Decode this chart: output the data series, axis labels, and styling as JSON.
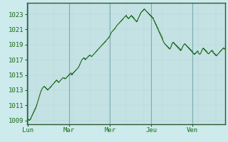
{
  "background_color": "#cdeaec",
  "plot_bg_color": "#cdeaec",
  "grid_color_light": "#b8d4d8",
  "grid_color_dark": "#7aacb2",
  "line_color": "#1a6b1a",
  "ylim": [
    1008.5,
    1024.5
  ],
  "yticks": [
    1009,
    1011,
    1013,
    1015,
    1017,
    1019,
    1021,
    1023
  ],
  "day_labels": [
    "Lun",
    "Mar",
    "Mer",
    "Jeu",
    "Ven"
  ],
  "day_positions": [
    0,
    60,
    120,
    180,
    240
  ],
  "total_points": 300,
  "pressure_values": [
    1009.2,
    1009.1,
    1009.0,
    1009.1,
    1009.2,
    1009.4,
    1009.6,
    1009.8,
    1010.0,
    1010.2,
    1010.4,
    1010.6,
    1010.8,
    1011.0,
    1011.3,
    1011.6,
    1011.9,
    1012.2,
    1012.5,
    1012.8,
    1013.0,
    1013.2,
    1013.3,
    1013.4,
    1013.5,
    1013.4,
    1013.3,
    1013.2,
    1013.1,
    1013.0,
    1013.1,
    1013.2,
    1013.3,
    1013.4,
    1013.5,
    1013.6,
    1013.7,
    1013.8,
    1013.9,
    1014.0,
    1014.1,
    1014.2,
    1014.3,
    1014.2,
    1014.1,
    1014.0,
    1014.1,
    1014.2,
    1014.3,
    1014.4,
    1014.5,
    1014.6,
    1014.6,
    1014.6,
    1014.5,
    1014.5,
    1014.6,
    1014.7,
    1014.8,
    1014.9,
    1015.0,
    1015.1,
    1015.2,
    1015.1,
    1015.0,
    1015.1,
    1015.2,
    1015.3,
    1015.4,
    1015.5,
    1015.6,
    1015.7,
    1015.8,
    1015.9,
    1016.0,
    1016.2,
    1016.4,
    1016.6,
    1016.8,
    1017.0,
    1017.1,
    1017.2,
    1017.2,
    1017.1,
    1017.0,
    1017.1,
    1017.2,
    1017.3,
    1017.4,
    1017.5,
    1017.6,
    1017.6,
    1017.5,
    1017.4,
    1017.5,
    1017.6,
    1017.7,
    1017.8,
    1017.9,
    1018.0,
    1018.1,
    1018.2,
    1018.3,
    1018.4,
    1018.5,
    1018.6,
    1018.7,
    1018.8,
    1018.9,
    1019.0,
    1019.1,
    1019.2,
    1019.3,
    1019.4,
    1019.5,
    1019.6,
    1019.7,
    1019.8,
    1019.9,
    1020.0,
    1020.2,
    1020.4,
    1020.6,
    1020.7,
    1020.8,
    1020.9,
    1021.0,
    1021.1,
    1021.2,
    1021.4,
    1021.5,
    1021.6,
    1021.7,
    1021.8,
    1021.9,
    1022.0,
    1022.1,
    1022.2,
    1022.3,
    1022.4,
    1022.5,
    1022.6,
    1022.7,
    1022.8,
    1022.7,
    1022.6,
    1022.5,
    1022.4,
    1022.5,
    1022.6,
    1022.7,
    1022.8,
    1022.7,
    1022.6,
    1022.5,
    1022.4,
    1022.3,
    1022.2,
    1022.1,
    1022.0,
    1022.2,
    1022.4,
    1022.6,
    1022.8,
    1023.0,
    1023.2,
    1023.3,
    1023.4,
    1023.5,
    1023.6,
    1023.7,
    1023.6,
    1023.5,
    1023.4,
    1023.3,
    1023.2,
    1023.1,
    1023.0,
    1022.9,
    1022.8,
    1022.7,
    1022.6,
    1022.5,
    1022.4,
    1022.2,
    1022.0,
    1021.8,
    1021.6,
    1021.4,
    1021.2,
    1021.0,
    1020.8,
    1020.6,
    1020.4,
    1020.2,
    1020.0,
    1019.8,
    1019.6,
    1019.4,
    1019.2,
    1019.1,
    1019.0,
    1018.9,
    1018.8,
    1018.7,
    1018.6,
    1018.5,
    1018.4,
    1018.5,
    1018.7,
    1019.0,
    1019.2,
    1019.3,
    1019.2,
    1019.1,
    1019.0,
    1018.9,
    1018.8,
    1018.7,
    1018.6,
    1018.5,
    1018.4,
    1018.3,
    1018.2,
    1018.3,
    1018.5,
    1018.7,
    1018.9,
    1019.0,
    1019.1,
    1019.0,
    1018.9,
    1018.8,
    1018.7,
    1018.6,
    1018.5,
    1018.4,
    1018.3,
    1018.2,
    1018.1,
    1018.0,
    1017.9,
    1017.8,
    1017.7,
    1017.8,
    1017.9,
    1018.0,
    1018.1,
    1018.0,
    1017.9,
    1017.8,
    1017.7,
    1017.8,
    1018.0,
    1018.2,
    1018.4,
    1018.5,
    1018.4,
    1018.3,
    1018.2,
    1018.1,
    1018.0,
    1017.9,
    1017.8,
    1017.8,
    1017.9,
    1018.0,
    1018.1,
    1018.2,
    1018.1,
    1018.0,
    1017.9,
    1017.8,
    1017.7,
    1017.6,
    1017.5,
    1017.6,
    1017.7,
    1017.8,
    1017.9,
    1018.0,
    1018.1,
    1018.2,
    1018.3,
    1018.4,
    1018.5,
    1018.5,
    1018.4
  ]
}
